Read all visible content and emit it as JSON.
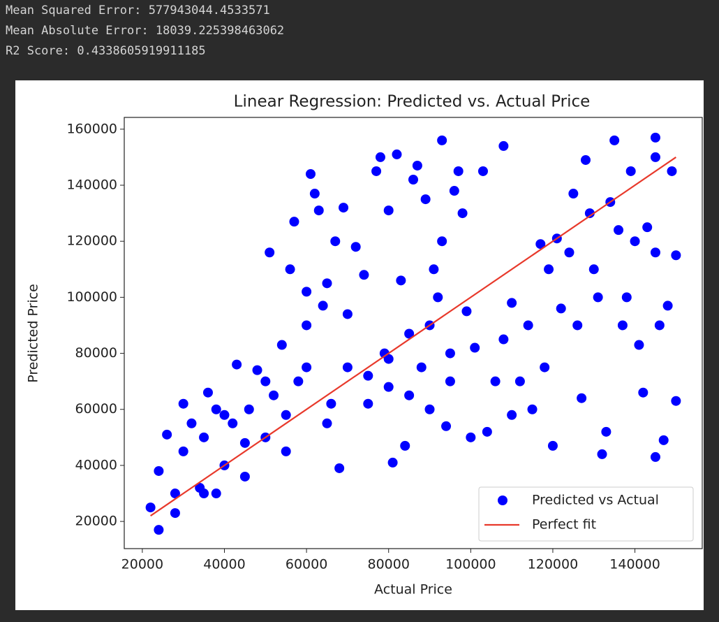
{
  "output_lines": [
    "Mean Squared Error: 577943044.4533571",
    "Mean Absolute Error: 18039.225398463062",
    "R2 Score: 0.4338605919911185"
  ],
  "chart_data": {
    "type": "scatter",
    "title": "Linear Regression: Predicted vs. Actual Price",
    "xlabel": "Actual Price",
    "ylabel": "Predicted Price",
    "xlim": [
      15600,
      156400
    ],
    "ylim": [
      10300,
      164200
    ],
    "xticks": [
      20000,
      40000,
      60000,
      80000,
      100000,
      120000,
      140000
    ],
    "yticks": [
      20000,
      40000,
      60000,
      80000,
      100000,
      120000,
      140000,
      160000
    ],
    "grid": false,
    "legend": "lower right",
    "series": [
      {
        "name": "Predicted vs Actual",
        "type": "scatter",
        "color": "#0000ff",
        "x": [
          22000,
          24000,
          24000,
          26000,
          28000,
          28000,
          30000,
          32000,
          34000,
          35000,
          36000,
          38000,
          38000,
          40000,
          42000,
          43000,
          45000,
          46000,
          48000,
          50000,
          51000,
          52000,
          54000,
          55000,
          56000,
          57000,
          58000,
          60000,
          60000,
          61000,
          62000,
          63000,
          64000,
          65000,
          66000,
          67000,
          68000,
          69000,
          70000,
          72000,
          74000,
          75000,
          77000,
          78000,
          79000,
          80000,
          80000,
          81000,
          82000,
          83000,
          84000,
          85000,
          86000,
          87000,
          88000,
          89000,
          90000,
          91000,
          92000,
          93000,
          93000,
          94000,
          95000,
          96000,
          97000,
          98000,
          99000,
          100000,
          101000,
          103000,
          104000,
          106000,
          108000,
          108000,
          110000,
          110000,
          112000,
          114000,
          115000,
          117000,
          118000,
          119000,
          120000,
          121000,
          122000,
          124000,
          125000,
          126000,
          127000,
          128000,
          129000,
          130000,
          131000,
          132000,
          133000,
          134000,
          135000,
          136000,
          137000,
          138000,
          139000,
          140000,
          141000,
          142000,
          143000,
          145000,
          145000,
          145000,
          145000,
          146000,
          147000,
          148000,
          149000,
          150000,
          150000,
          30000,
          35000,
          40000,
          45000,
          50000,
          55000,
          60000,
          65000,
          70000,
          75000,
          80000,
          85000,
          90000,
          95000
        ],
        "values": [
          25000,
          17000,
          38000,
          51000,
          30000,
          23000,
          62000,
          55000,
          32000,
          30000,
          66000,
          30000,
          60000,
          40000,
          55000,
          76000,
          36000,
          60000,
          74000,
          50000,
          116000,
          65000,
          83000,
          45000,
          110000,
          127000,
          70000,
          90000,
          102000,
          144000,
          137000,
          131000,
          97000,
          105000,
          62000,
          120000,
          39000,
          132000,
          94000,
          118000,
          108000,
          62000,
          145000,
          150000,
          80000,
          131000,
          68000,
          41000,
          151000,
          106000,
          47000,
          87000,
          142000,
          147000,
          75000,
          135000,
          60000,
          110000,
          100000,
          156000,
          120000,
          54000,
          80000,
          138000,
          145000,
          130000,
          95000,
          50000,
          82000,
          145000,
          52000,
          70000,
          154000,
          85000,
          98000,
          58000,
          70000,
          90000,
          60000,
          119000,
          75000,
          110000,
          47000,
          121000,
          96000,
          116000,
          137000,
          90000,
          64000,
          149000,
          130000,
          110000,
          100000,
          44000,
          52000,
          134000,
          156000,
          124000,
          90000,
          100000,
          145000,
          120000,
          83000,
          66000,
          125000,
          157000,
          43000,
          116000,
          150000,
          90000,
          49000,
          97000,
          145000,
          115000,
          63000,
          45000,
          50000,
          58000,
          48000,
          70000,
          58000,
          75000,
          55000,
          75000,
          72000,
          78000,
          65000,
          90000,
          70000
        ]
      },
      {
        "name": "Perfect fit",
        "type": "line",
        "color": "#e8392b",
        "x": [
          22000,
          150000
        ],
        "values": [
          22000,
          150000
        ]
      }
    ]
  }
}
